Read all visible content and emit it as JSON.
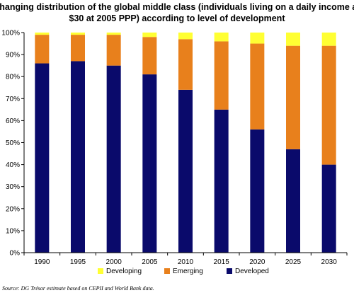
{
  "chart_data": {
    "type": "bar",
    "stacked": true,
    "title_lines": [
      "The changing distribution of the global middle class (individuals living on a daily income above",
      "$30 at 2005 PPP) according to level of development"
    ],
    "categories": [
      "1990",
      "1995",
      "2000",
      "2005",
      "2010",
      "2015",
      "2020",
      "2025",
      "2030"
    ],
    "series": [
      {
        "name": "Developed",
        "color": "#0a0a6b",
        "values": [
          86,
          87,
          85,
          81,
          74,
          65,
          56,
          47,
          40
        ]
      },
      {
        "name": "Emerging",
        "color": "#e8801c",
        "values": [
          13,
          12,
          14,
          17,
          23,
          31,
          39,
          47,
          54
        ]
      },
      {
        "name": "Developing",
        "color": "#ffff33",
        "values": [
          1,
          1,
          1,
          2,
          3,
          4,
          5,
          6,
          6
        ]
      }
    ],
    "y_ticks": [
      "0%",
      "10%",
      "20%",
      "30%",
      "40%",
      "50%",
      "60%",
      "70%",
      "80%",
      "90%",
      "100%"
    ],
    "ylim": [
      0,
      100
    ],
    "legend": {
      "placement": "bottom",
      "order": [
        "Developing",
        "Emerging",
        "Developed"
      ]
    },
    "source": "Source: DG Trésor estimate based on CEPII and World Bank data.",
    "grid": false
  }
}
